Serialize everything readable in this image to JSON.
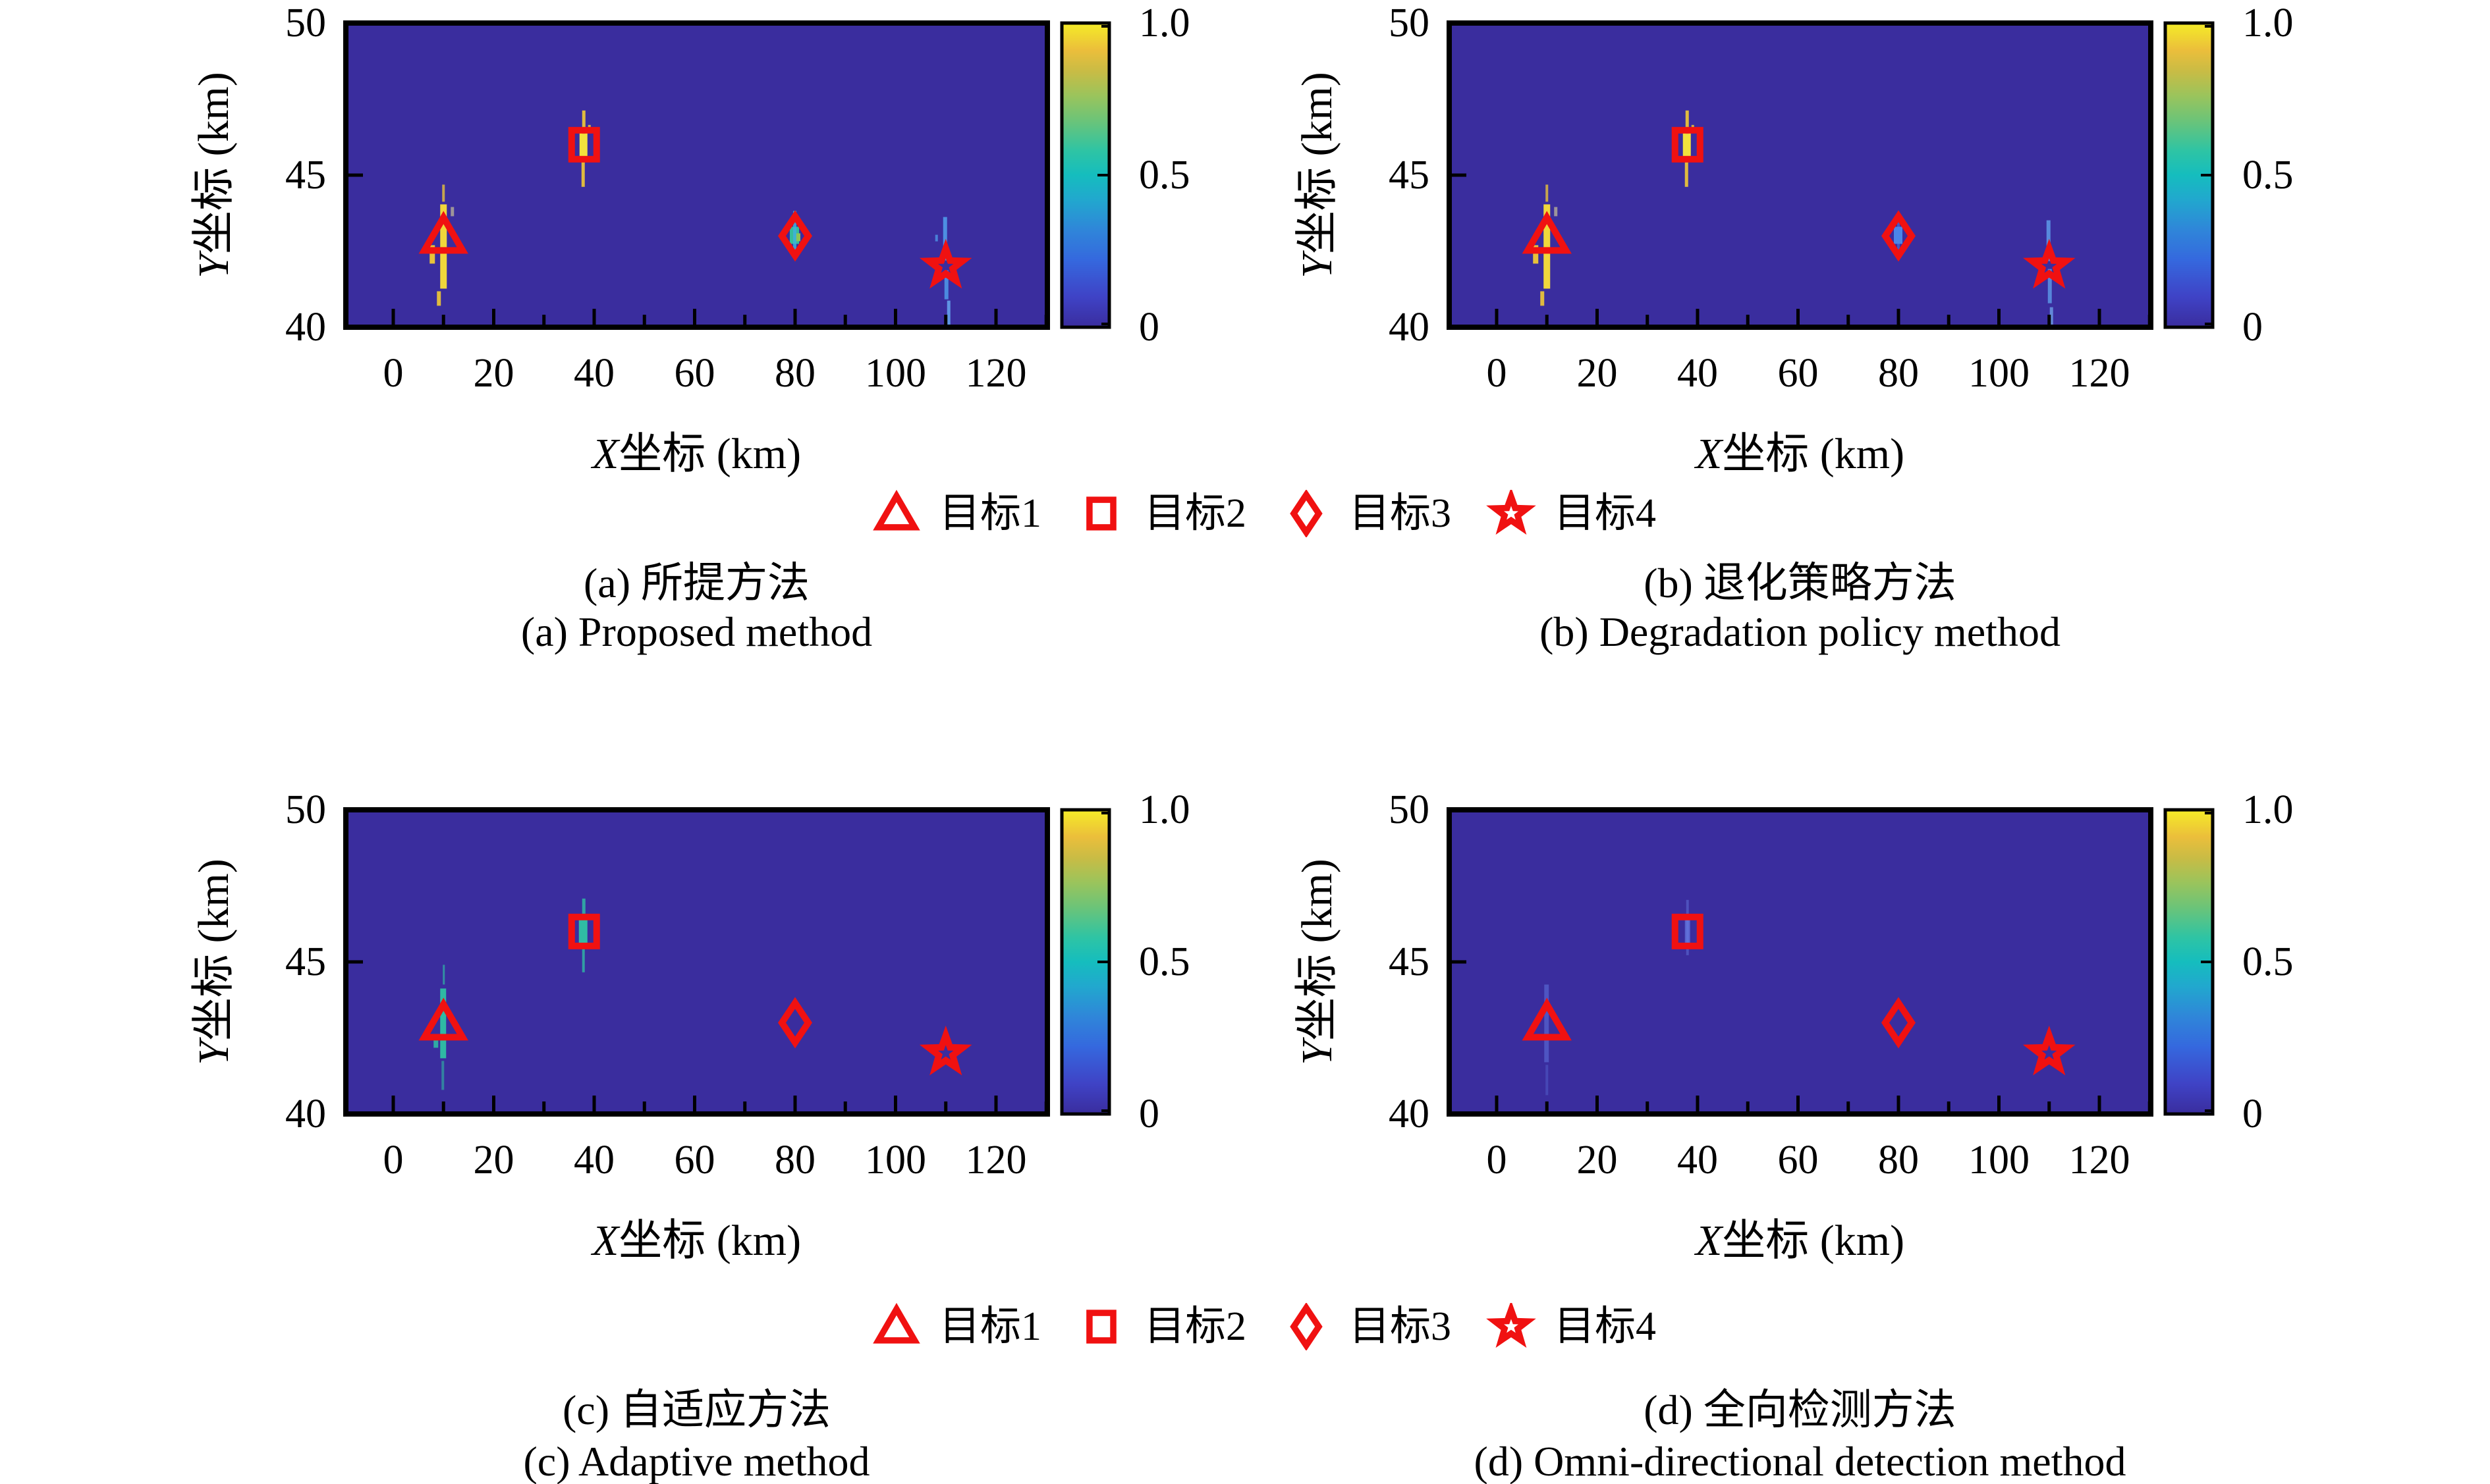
{
  "figure_title": "",
  "legend": {
    "items": [
      {
        "label": "目标1",
        "marker": "triangle"
      },
      {
        "label": "目标2",
        "marker": "square"
      },
      {
        "label": "目标3",
        "marker": "diamond"
      },
      {
        "label": "目标4",
        "marker": "star"
      }
    ]
  },
  "style": {
    "marker_color": "#F01111",
    "field_color": "#3A2D9E",
    "text_color": "#000000",
    "colorbar_gradient": [
      [
        "0.00",
        "#3A2D9E"
      ],
      [
        "0.10",
        "#3F43C6"
      ],
      [
        "0.22",
        "#3568DE"
      ],
      [
        "0.32",
        "#2F86D9"
      ],
      [
        "0.42",
        "#21A8CE"
      ],
      [
        "0.50",
        "#15BDBE"
      ],
      [
        "0.58",
        "#2EC4A4"
      ],
      [
        "0.68",
        "#6CC478"
      ],
      [
        "0.76",
        "#9AC45C"
      ],
      [
        "0.84",
        "#C8BC45"
      ],
      [
        "0.91",
        "#EBBE3B"
      ],
      [
        "1.00",
        "#F5EC27"
      ]
    ]
  },
  "chart_data": [
    {
      "type": "heatmap",
      "panel": "a",
      "caption_cn": "(a) 所提方法",
      "caption_en": "(a) Proposed method",
      "xlabel_var": "X",
      "xlabel_rest": "坐标 (km)",
      "ylabel_var": "Y",
      "ylabel_rest": "坐标 (km)",
      "xlim": [
        -9.5,
        130.3
      ],
      "ylim": [
        40,
        50
      ],
      "x_ticks": [
        "0",
        "20",
        "40",
        "60",
        "80",
        "100",
        "120"
      ],
      "x_tick_values": [
        0,
        20,
        40,
        60,
        80,
        100,
        120
      ],
      "y_ticks": [
        "50",
        "45",
        "40"
      ],
      "y_tick_values": [
        50,
        45,
        40
      ],
      "colorbar_ticks": [
        "1.0",
        "0.5",
        "0"
      ],
      "colorbar_range": [
        0,
        1
      ],
      "targets": [
        {
          "label": "目标1",
          "marker": "triangle",
          "x": 10,
          "y": 43,
          "detected": true,
          "peak": 1.0
        },
        {
          "label": "目标2",
          "marker": "square",
          "x": 38,
          "y": 46,
          "detected": true,
          "peak": 1.0
        },
        {
          "label": "目标3",
          "marker": "diamond",
          "x": 80,
          "y": 43,
          "detected": true,
          "peak": 0.55
        },
        {
          "label": "目标4",
          "marker": "star",
          "x": 110,
          "y": 42,
          "detected": true,
          "peak": 0.3
        }
      ],
      "spots": [
        {
          "target": 0,
          "rects": [
            [
              -5,
              -48,
              10,
              128,
              "#F0D73B",
              1
            ],
            [
              -21,
              14,
              8,
              28,
              "#E8C23A",
              1
            ],
            [
              11,
              -44,
              5,
              14,
              "#A8A098",
              0.9
            ],
            [
              -10,
              84,
              6,
              22,
              "#E8C23A",
              0.95
            ],
            [
              -2,
              -78,
              4,
              26,
              "#E8C23A",
              0.8
            ]
          ]
        },
        {
          "target": 1,
          "rects": [
            [
              -7,
              -18,
              12,
              38,
              "#F2E23C",
              1
            ],
            [
              -3,
              -52,
              5,
              36,
              "#E8C23A",
              0.95
            ],
            [
              -4,
              22,
              5,
              42,
              "#E8C23A",
              0.95
            ],
            [
              6,
              -30,
              4,
              12,
              "#E8C23A",
              0.9
            ]
          ]
        },
        {
          "target": 2,
          "rects": [
            [
              -8,
              -14,
              14,
              26,
              "#35BC9C",
              1
            ],
            [
              1,
              -4,
              7,
              12,
              "#8CC455",
              1
            ],
            [
              -3,
              -38,
              5,
              72,
              "#3FB0DC",
              0.85
            ]
          ]
        },
        {
          "target": 3,
          "rects": [
            [
              -4,
              -75,
              6,
              66,
              "#4E95E6",
              0.95
            ],
            [
              -2,
              6,
              6,
              44,
              "#4E95E6",
              0.9
            ],
            [
              2,
              52,
              5,
              44,
              "#66A8EE",
              0.85
            ],
            [
              -16,
              -48,
              4,
              10,
              "#4E95E6",
              0.8
            ]
          ]
        }
      ]
    },
    {
      "type": "heatmap",
      "panel": "b",
      "caption_cn": "(b) 退化策略方法",
      "caption_en": "(b) Degradation policy method",
      "xlabel_var": "X",
      "xlabel_rest": "坐标 (km)",
      "ylabel_var": "Y",
      "ylabel_rest": "坐标 (km)",
      "xlim": [
        -9.5,
        130.3
      ],
      "ylim": [
        40,
        50
      ],
      "x_ticks": [
        "0",
        "20",
        "40",
        "60",
        "80",
        "100",
        "120"
      ],
      "x_tick_values": [
        0,
        20,
        40,
        60,
        80,
        100,
        120
      ],
      "y_ticks": [
        "50",
        "45",
        "40"
      ],
      "y_tick_values": [
        50,
        45,
        40
      ],
      "colorbar_ticks": [
        "1.0",
        "0.5",
        "0"
      ],
      "colorbar_range": [
        0,
        1
      ],
      "targets": [
        {
          "label": "目标1",
          "marker": "triangle",
          "x": 10,
          "y": 43,
          "detected": true,
          "peak": 1.0
        },
        {
          "label": "目标2",
          "marker": "square",
          "x": 38,
          "y": 46,
          "detected": true,
          "peak": 1.0
        },
        {
          "label": "目标3",
          "marker": "diamond",
          "x": 80,
          "y": 43,
          "detected": true,
          "peak": 0.35
        },
        {
          "label": "目标4",
          "marker": "star",
          "x": 110,
          "y": 42,
          "detected": true,
          "peak": 0.25
        }
      ],
      "spots": [
        {
          "target": 0,
          "rects": [
            [
              -5,
              -48,
              10,
              128,
              "#F0D73B",
              1
            ],
            [
              -21,
              14,
              8,
              28,
              "#E8C23A",
              1
            ],
            [
              11,
              -44,
              5,
              14,
              "#A8A098",
              0.9
            ],
            [
              -10,
              84,
              6,
              22,
              "#E8C23A",
              0.95
            ],
            [
              -2,
              -78,
              4,
              26,
              "#E8C23A",
              0.8
            ]
          ]
        },
        {
          "target": 1,
          "rects": [
            [
              -7,
              -18,
              12,
              38,
              "#F2E23C",
              1
            ],
            [
              -3,
              -52,
              5,
              36,
              "#E8C23A",
              0.95
            ],
            [
              -4,
              22,
              5,
              42,
              "#E8C23A",
              0.95
            ],
            [
              6,
              -30,
              4,
              12,
              "#E8C23A",
              0.9
            ]
          ]
        },
        {
          "target": 2,
          "rects": [
            [
              -7,
              -14,
              13,
              26,
              "#4B86E8",
              1
            ],
            [
              -2,
              -34,
              4,
              64,
              "#4B86E8",
              0.5
            ]
          ]
        },
        {
          "target": 3,
          "rects": [
            [
              -4,
              -70,
              6,
              62,
              "#5E9BE8",
              0.85
            ],
            [
              -2,
              4,
              6,
              52,
              "#5E9BE8",
              0.8
            ],
            [
              1,
              62,
              5,
              58,
              "#74AEF0",
              0.7
            ],
            [
              3,
              124,
              4,
              36,
              "#86B8F2",
              0.6
            ]
          ]
        }
      ]
    },
    {
      "type": "heatmap",
      "panel": "c",
      "caption_cn": "(c) 自适应方法",
      "caption_en": "(c) Adaptive method",
      "xlabel_var": "X",
      "xlabel_rest": "坐标 (km)",
      "ylabel_var": "Y",
      "ylabel_rest": "坐标 (km)",
      "xlim": [
        -9.5,
        130.3
      ],
      "ylim": [
        40,
        50
      ],
      "x_ticks": [
        "0",
        "20",
        "40",
        "60",
        "80",
        "100",
        "120"
      ],
      "x_tick_values": [
        0,
        20,
        40,
        60,
        80,
        100,
        120
      ],
      "y_ticks": [
        "50",
        "45",
        "40"
      ],
      "y_tick_values": [
        50,
        45,
        40
      ],
      "colorbar_ticks": [
        "1.0",
        "0.5",
        "0"
      ],
      "colorbar_range": [
        0,
        1
      ],
      "targets": [
        {
          "label": "目标1",
          "marker": "triangle",
          "x": 10,
          "y": 43,
          "detected": true,
          "peak": 0.55
        },
        {
          "label": "目标2",
          "marker": "square",
          "x": 38,
          "y": 46,
          "detected": true,
          "peak": 0.55
        },
        {
          "label": "目标3",
          "marker": "diamond",
          "x": 80,
          "y": 43,
          "detected": false,
          "peak": 0.0
        },
        {
          "label": "目标4",
          "marker": "star",
          "x": 110,
          "y": 42,
          "detected": false,
          "peak": 0.0
        }
      ],
      "spots": [
        {
          "target": 0,
          "rects": [
            [
              -5,
              -52,
              9,
              106,
              "#2FB9A4",
              1
            ],
            [
              -15,
              18,
              7,
              20,
              "#2FB9A4",
              0.9
            ],
            [
              -3,
              58,
              4,
              44,
              "#2FB9A4",
              0.6
            ],
            [
              -1,
              -88,
              3,
              30,
              "#2FB9A4",
              0.7
            ]
          ]
        },
        {
          "target": 1,
          "rects": [
            [
              -8,
              -20,
              13,
              40,
              "#30BCA4",
              1
            ],
            [
              -3,
              -50,
              5,
              32,
              "#2FB9A4",
              0.85
            ],
            [
              -3,
              24,
              4,
              38,
              "#2FB9A4",
              0.8
            ]
          ]
        }
      ]
    },
    {
      "type": "heatmap",
      "panel": "d",
      "caption_cn": "(d) 全向检测方法",
      "caption_en": "(d) Omni-directional detection method",
      "xlabel_var": "X",
      "xlabel_rest": "坐标 (km)",
      "ylabel_var": "Y",
      "ylabel_rest": "坐标 (km)",
      "xlim": [
        -9.5,
        130.3
      ],
      "ylim": [
        40,
        50
      ],
      "x_ticks": [
        "0",
        "20",
        "40",
        "60",
        "80",
        "100",
        "120"
      ],
      "x_tick_values": [
        0,
        20,
        40,
        60,
        80,
        100,
        120
      ],
      "y_ticks": [
        "50",
        "45",
        "40"
      ],
      "y_tick_values": [
        50,
        45,
        40
      ],
      "colorbar_ticks": [
        "1.0",
        "0.5",
        "0"
      ],
      "colorbar_range": [
        0,
        1
      ],
      "targets": [
        {
          "label": "目标1",
          "marker": "triangle",
          "x": 10,
          "y": 43,
          "detected": false,
          "peak": 0.1
        },
        {
          "label": "目标2",
          "marker": "square",
          "x": 38,
          "y": 46,
          "detected": false,
          "peak": 0.15
        },
        {
          "label": "目标3",
          "marker": "diamond",
          "x": 80,
          "y": 43,
          "detected": false,
          "peak": 0.0
        },
        {
          "label": "目标4",
          "marker": "star",
          "x": 110,
          "y": 42,
          "detected": false,
          "peak": 0.0
        }
      ],
      "spots": [
        {
          "target": 0,
          "rects": [
            [
              -4,
              -58,
              7,
              118,
              "#5E77E0",
              0.55
            ],
            [
              -2,
              64,
              4,
              46,
              "#5E77E0",
              0.35
            ]
          ]
        },
        {
          "target": 1,
          "rects": [
            [
              -4,
              -22,
              8,
              46,
              "#6D86EC",
              0.6
            ],
            [
              -2,
              -48,
              4,
              84,
              "#6D86EC",
              0.4
            ]
          ]
        }
      ]
    }
  ]
}
